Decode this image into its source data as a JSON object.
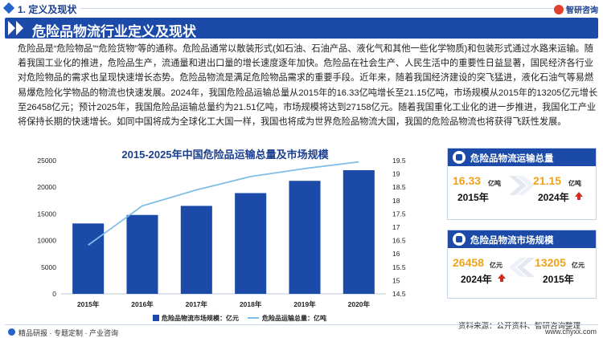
{
  "section": {
    "title": "1. 定义及现状"
  },
  "header": {
    "title": "危险品物流行业定义及现状",
    "brand": "智研咨询"
  },
  "paragraph": "危险品是“危险物品”“危险货物”等的通称。危险品通常以散装形式(如石油、石油产品、液化气和其他一些化学物质)和包装形式通过水路来运输。随着我国工业化的推进，危险品生产，流通量和进出口量的增长速度逐年加快。危险品在社会生产、人民生活中的重要性日益显著，国民经济各行业对危险物品的需求也呈现快速增长态势。危险品物流是满足危险物品需求的重要手段。近年来，随着我国经济建设的突飞猛进，液化石油气等易燃易爆危险化学物品的物流也快速发展。2024年，我国危险品运输总量从2015年的16.33亿吨增长至21.15亿吨，市场规模从2015年的13205亿元增长至26458亿元；预计2025年，我国危险品运输总量约为21.51亿吨，市场规模将达到27158亿元。随着我国重化工业化的进一步推进，我国化工产业将保持长期的快速增长。如同中国将成为全球化工大国一样，我国也将成为世界危险品物流大国，我国的危险品物流也将获得飞跃性发展。",
  "chart_data": {
    "type": "bar",
    "title": "2015-2025年中国危险品运输总量及市场规模",
    "categories": [
      "2015年",
      "2016年",
      "2017年",
      "2018年",
      "2019年",
      "2020年"
    ],
    "series": [
      {
        "name": "危险品物流市场规模：亿元",
        "type": "bar",
        "axis": "left",
        "values": [
          13205,
          14800,
          16500,
          18900,
          21200,
          23200
        ]
      },
      {
        "name": "危险品运输总量：亿吨",
        "type": "line",
        "axis": "right",
        "values": [
          16.33,
          17.8,
          18.4,
          18.9,
          19.2,
          19.45
        ]
      }
    ],
    "y_left": {
      "ticks": [
        0,
        5000,
        10000,
        15000,
        20000,
        25000
      ],
      "min": 0,
      "max": 25000
    },
    "y_right": {
      "ticks": [
        14.5,
        15,
        15.5,
        16,
        16.5,
        17,
        17.5,
        18,
        18.5,
        19,
        19.5
      ],
      "min": 14.5,
      "max": 19.5
    },
    "legend_placement": "bottom-center",
    "colors": {
      "bar": "#1b4aa8",
      "line": "#7fbfe6"
    }
  },
  "cards": {
    "volume": {
      "title": "危险品物流运输总量",
      "left_value": "16.33",
      "left_unit": "亿吨",
      "left_year": "2015年",
      "right_value": "21.15",
      "right_unit": "亿吨",
      "right_year": "2024年"
    },
    "market": {
      "title": "危险品物流市场规模",
      "left_value": "26458",
      "left_unit": "亿元",
      "left_year": "2024年",
      "right_value": "13205",
      "right_unit": "亿元",
      "right_year": "2015年"
    }
  },
  "footer": {
    "left": "精品研报 · 专题定制 · 产业咨询",
    "source": "资料来源：公开资料、智研咨询整理",
    "right": "www.chyxx.com"
  }
}
